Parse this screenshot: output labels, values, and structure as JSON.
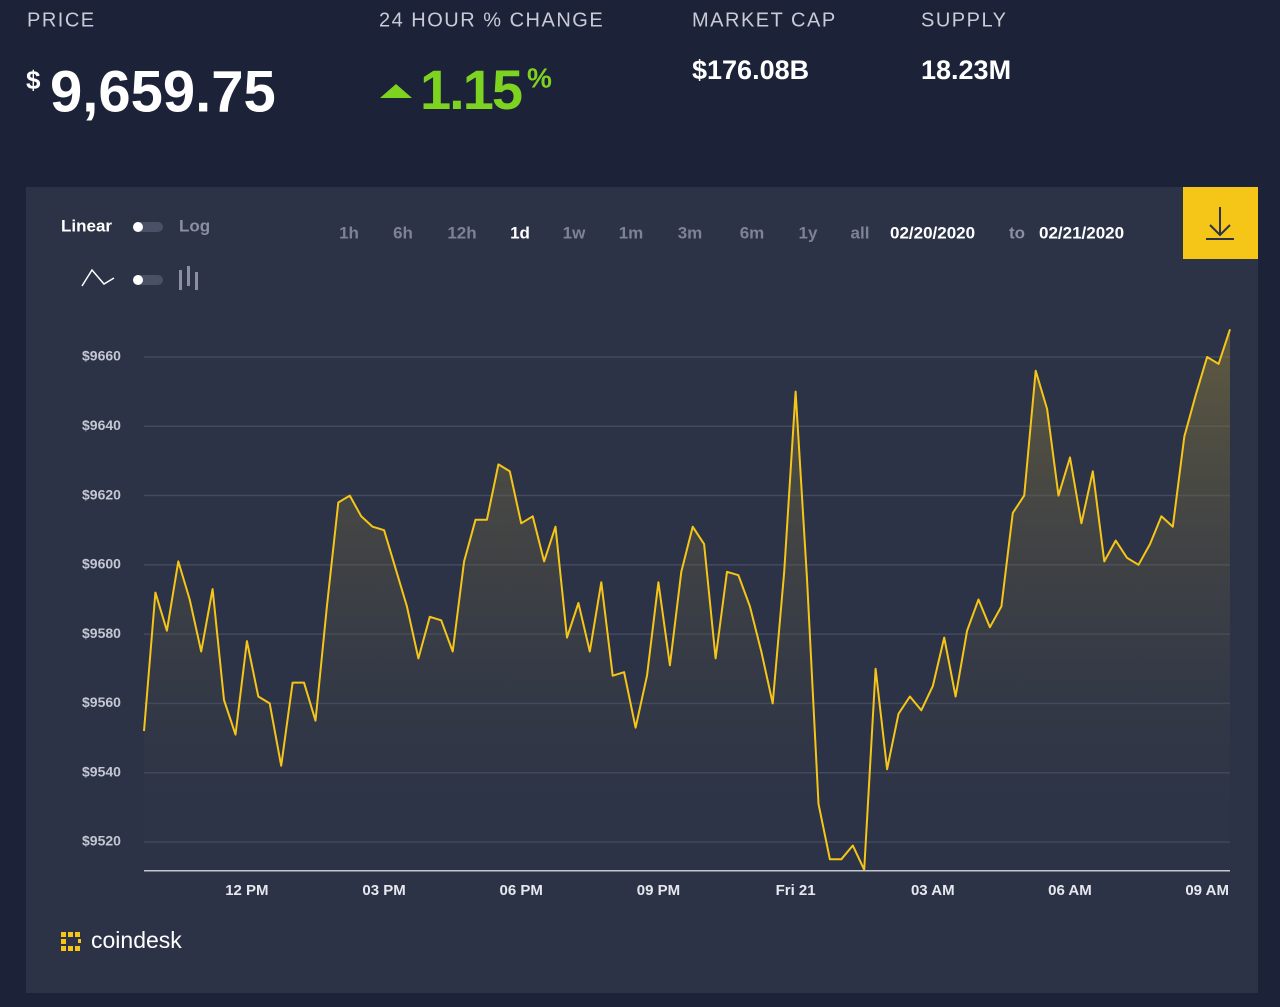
{
  "header": {
    "price_label": "PRICE",
    "currency": "$",
    "price": "9,659.75",
    "change_label": "24 HOUR % CHANGE",
    "change": "1.15",
    "change_unit": "%",
    "market_cap_label": "MARKET CAP",
    "market_cap": "$176.08B",
    "supply_label": "SUPPLY",
    "supply": "18.23M"
  },
  "controls": {
    "scale_options": [
      "Linear",
      "Log"
    ],
    "selected_scale": "Linear",
    "ranges": [
      "1h",
      "6h",
      "12h",
      "1d",
      "1w",
      "1m",
      "3m",
      "6m",
      "1y",
      "all"
    ],
    "selected_range": "1d",
    "date_from": "02/20/2020",
    "date_sep": "to",
    "date_to": "02/21/2020"
  },
  "chart_data": {
    "type": "line",
    "color": "#f5c518",
    "categories": [
      null,
      null,
      null,
      null,
      null,
      null,
      null,
      null,
      null,
      "12 PM",
      null,
      null,
      null,
      null,
      null,
      null,
      null,
      null,
      null,
      null,
      null,
      "03 PM",
      null,
      null,
      null,
      null,
      null,
      null,
      null,
      null,
      null,
      null,
      null,
      "06 PM",
      null,
      null,
      null,
      null,
      null,
      null,
      null,
      null,
      null,
      null,
      null,
      "09 PM",
      null,
      null,
      null,
      null,
      null,
      null,
      null,
      null,
      null,
      null,
      null,
      "Fri 21",
      null,
      null,
      null,
      null,
      null,
      null,
      null,
      null,
      null,
      null,
      null,
      "03 AM",
      null,
      null,
      null,
      null,
      null,
      null,
      null,
      null,
      null,
      null,
      null,
      "06 AM",
      null,
      null,
      null,
      null,
      null,
      null,
      null,
      null,
      null,
      null,
      null,
      "09 AM",
      null,
      null
    ],
    "values": [
      9552,
      9592,
      9581,
      9601,
      9590,
      9575,
      9593,
      9561,
      9551,
      9578,
      9562,
      9560,
      9542,
      9566,
      9566,
      9555,
      9588,
      9618,
      9620,
      9614,
      9611,
      9610,
      9599,
      9588,
      9573,
      9585,
      9584,
      9575,
      9601,
      9613,
      9613,
      9629,
      9627,
      9612,
      9614,
      9601,
      9611,
      9579,
      9589,
      9575,
      9595,
      9568,
      9569,
      9553,
      9568,
      9595,
      9571,
      9598,
      9611,
      9606,
      9573,
      9598,
      9597,
      9588,
      9575,
      9560,
      9598,
      9650,
      9596,
      9531,
      9515,
      9515,
      9519,
      9512,
      9570,
      9541,
      9557,
      9562,
      9558,
      9565,
      9579,
      9562,
      9581,
      9590,
      9582,
      9588,
      9615,
      9620,
      9656,
      9645,
      9620,
      9631,
      9612,
      9627,
      9601,
      9607,
      9602,
      9600,
      9606,
      9614,
      9611,
      9637,
      9649,
      9660,
      9658,
      9668
    ],
    "ylim": [
      9512,
      9680
    ],
    "yticks": [
      {
        "value": 9520,
        "label": "$9520"
      },
      {
        "value": 9540,
        "label": "$9540"
      },
      {
        "value": 9560,
        "label": "$9560"
      },
      {
        "value": 9580,
        "label": "$9580"
      },
      {
        "value": 9600,
        "label": "$9600"
      },
      {
        "value": 9620,
        "label": "$9620"
      },
      {
        "value": 9640,
        "label": "$9640"
      },
      {
        "value": 9660,
        "label": "$9660"
      }
    ],
    "grid": true
  },
  "brand": "coindesk"
}
